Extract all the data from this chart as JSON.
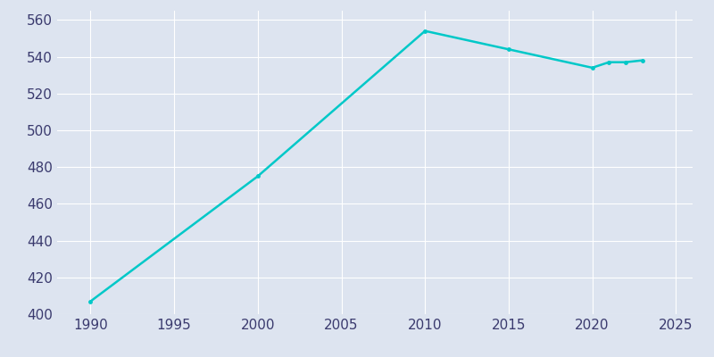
{
  "years": [
    1990,
    2000,
    2010,
    2015,
    2020,
    2021,
    2022,
    2023
  ],
  "values": [
    407,
    475,
    554,
    544,
    534,
    537,
    537,
    538
  ],
  "line_color": "#00c8c8",
  "marker": "o",
  "marker_size": 3.5,
  "background_color": "#dde4f0",
  "plot_background_color": "#dde4f0",
  "grid_color": "#ffffff",
  "tick_color": "#3a3a6e",
  "xlim": [
    1988,
    2026
  ],
  "ylim": [
    400,
    565
  ],
  "yticks": [
    400,
    420,
    440,
    460,
    480,
    500,
    520,
    540,
    560
  ],
  "xticks": [
    1990,
    1995,
    2000,
    2005,
    2010,
    2015,
    2020,
    2025
  ],
  "tick_fontsize": 11,
  "linewidth": 1.8
}
